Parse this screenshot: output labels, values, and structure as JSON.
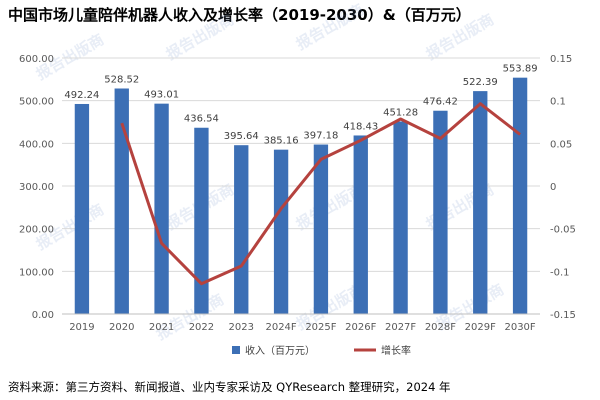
{
  "title": "中国市场儿童陪伴机器人收入及增长率（2019-2030）&（百万元）",
  "source": "资料来源：第三方资料、新闻报道、业内专家采访及 QYResearch 整理研究，2024 年",
  "watermark_text": "报告出版商",
  "colors": {
    "bar": "#3c6fb5",
    "line": "#b5423e",
    "axis": "#595959",
    "grid": "#d9d9d9"
  },
  "chart_data": {
    "type": "bar",
    "categories": [
      "2019",
      "2020",
      "2021",
      "2022",
      "2023",
      "2024F",
      "2025F",
      "2026F",
      "2027F",
      "2028F",
      "2029F",
      "2030F"
    ],
    "series": [
      {
        "name": "收入（百万元）",
        "type": "bar",
        "axis": "left",
        "values": [
          492.24,
          528.52,
          493.01,
          436.54,
          395.64,
          385.16,
          397.18,
          418.43,
          451.28,
          476.42,
          522.39,
          553.89
        ],
        "labels": [
          "492.24",
          "528.52",
          "493.01",
          "436.54",
          "395.64",
          "385.16",
          "397.18",
          "418.43",
          "451.28",
          "476.42",
          "522.39",
          "553.89"
        ]
      },
      {
        "name": "增长率",
        "type": "line",
        "axis": "right",
        "values": [
          null,
          0.0737,
          -0.0672,
          -0.1145,
          -0.0937,
          -0.0265,
          0.0312,
          0.0535,
          0.0785,
          0.0557,
          0.0965,
          0.0603
        ]
      }
    ],
    "left_axis": {
      "min": 0,
      "max": 600,
      "step": 100,
      "ticks": [
        "0.00",
        "100.00",
        "200.00",
        "300.00",
        "400.00",
        "500.00",
        "600.00"
      ]
    },
    "right_axis": {
      "min": -0.15,
      "max": 0.15,
      "step": 0.05,
      "ticks": [
        "-0.15",
        "-0.1",
        "-0.05",
        "0",
        "0.05",
        "0.1",
        "0.15"
      ]
    },
    "grid": true,
    "legend_position": "bottom"
  }
}
